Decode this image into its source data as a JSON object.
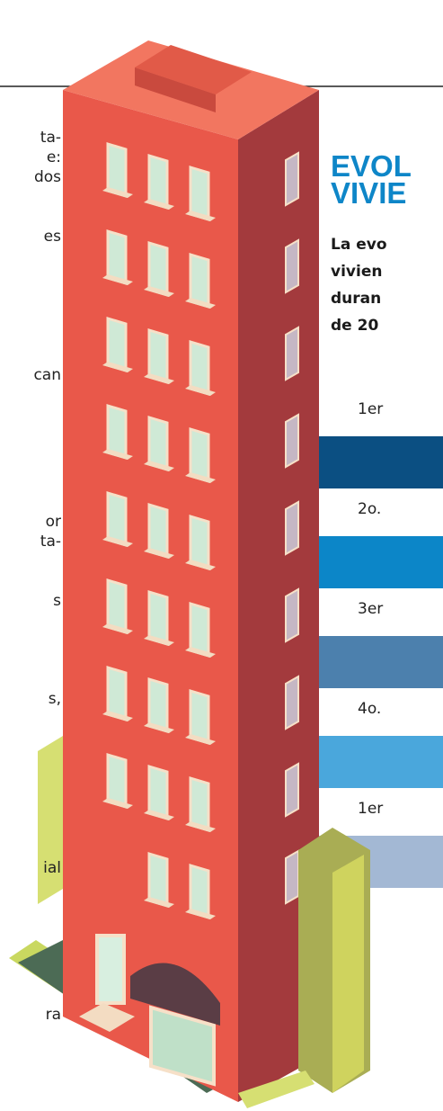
{
  "left_column": {
    "lines": [
      "ta-",
      "e:",
      "dos",
      "es",
      "can",
      "or",
      "ta-",
      "s",
      "s,",
      "ial",
      "ra"
    ]
  },
  "sidebar": {
    "title_lines": [
      "EVOL",
      "VIVIE"
    ],
    "body_lines": [
      "La evo",
      "vivien",
      "duran",
      "de 20"
    ],
    "quarters": [
      "1er",
      "2o.",
      "3er",
      "4o.",
      "1er"
    ]
  }
}
